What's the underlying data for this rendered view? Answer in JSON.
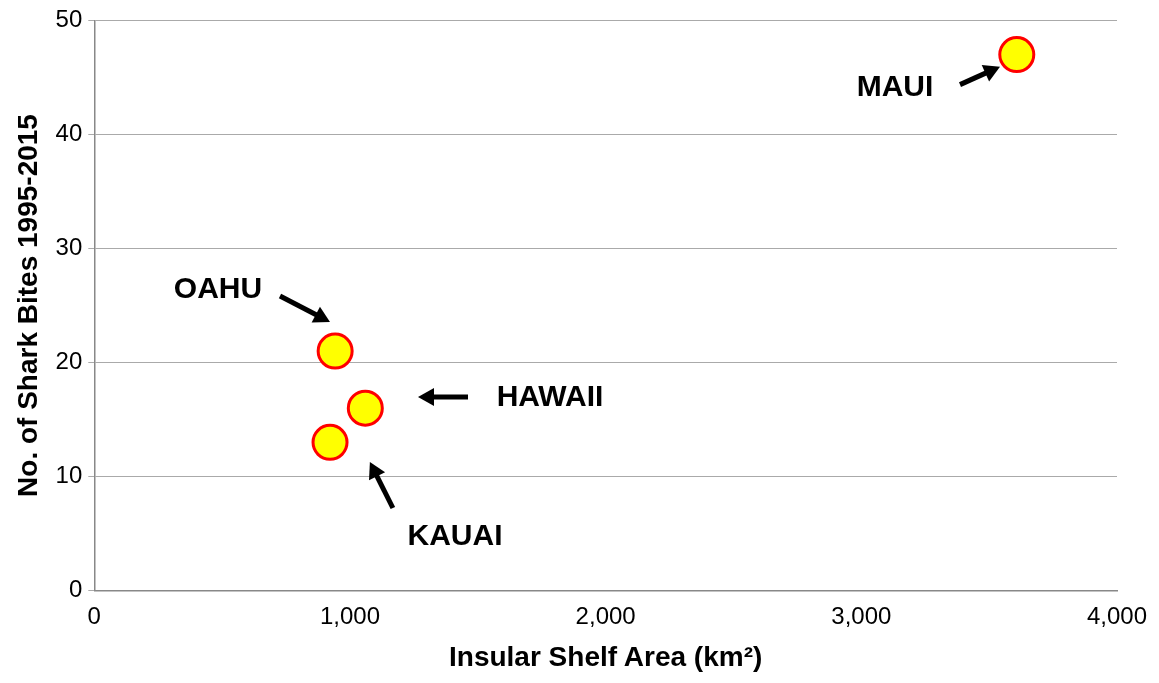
{
  "chart_data": {
    "type": "scatter",
    "xlabel": "Insular Shelf Area (km²)",
    "ylabel": "No. of Shark Bites 1995-2015",
    "x": [
      3608,
      942,
      1060,
      922
    ],
    "values": [
      47,
      21,
      16,
      13
    ],
    "color": "#ffff00",
    "xlim": [
      0,
      4000
    ],
    "xticks": [
      0,
      {
        "value": 1000,
        "label": "1,000"
      },
      {
        "value": 2000,
        "label": "2,000"
      },
      {
        "value": 3000,
        "label": "3,000"
      },
      {
        "value": 4000,
        "label": "4,000"
      }
    ],
    "ylim": [
      0,
      50
    ],
    "yticks": [
      0,
      10,
      20,
      30,
      40,
      50
    ],
    "grid": "y",
    "legend": false,
    "marker": "circle",
    "annotations": [
      "MAUI",
      "OAHU",
      "HAWAII",
      "KAUAI"
    ]
  }
}
